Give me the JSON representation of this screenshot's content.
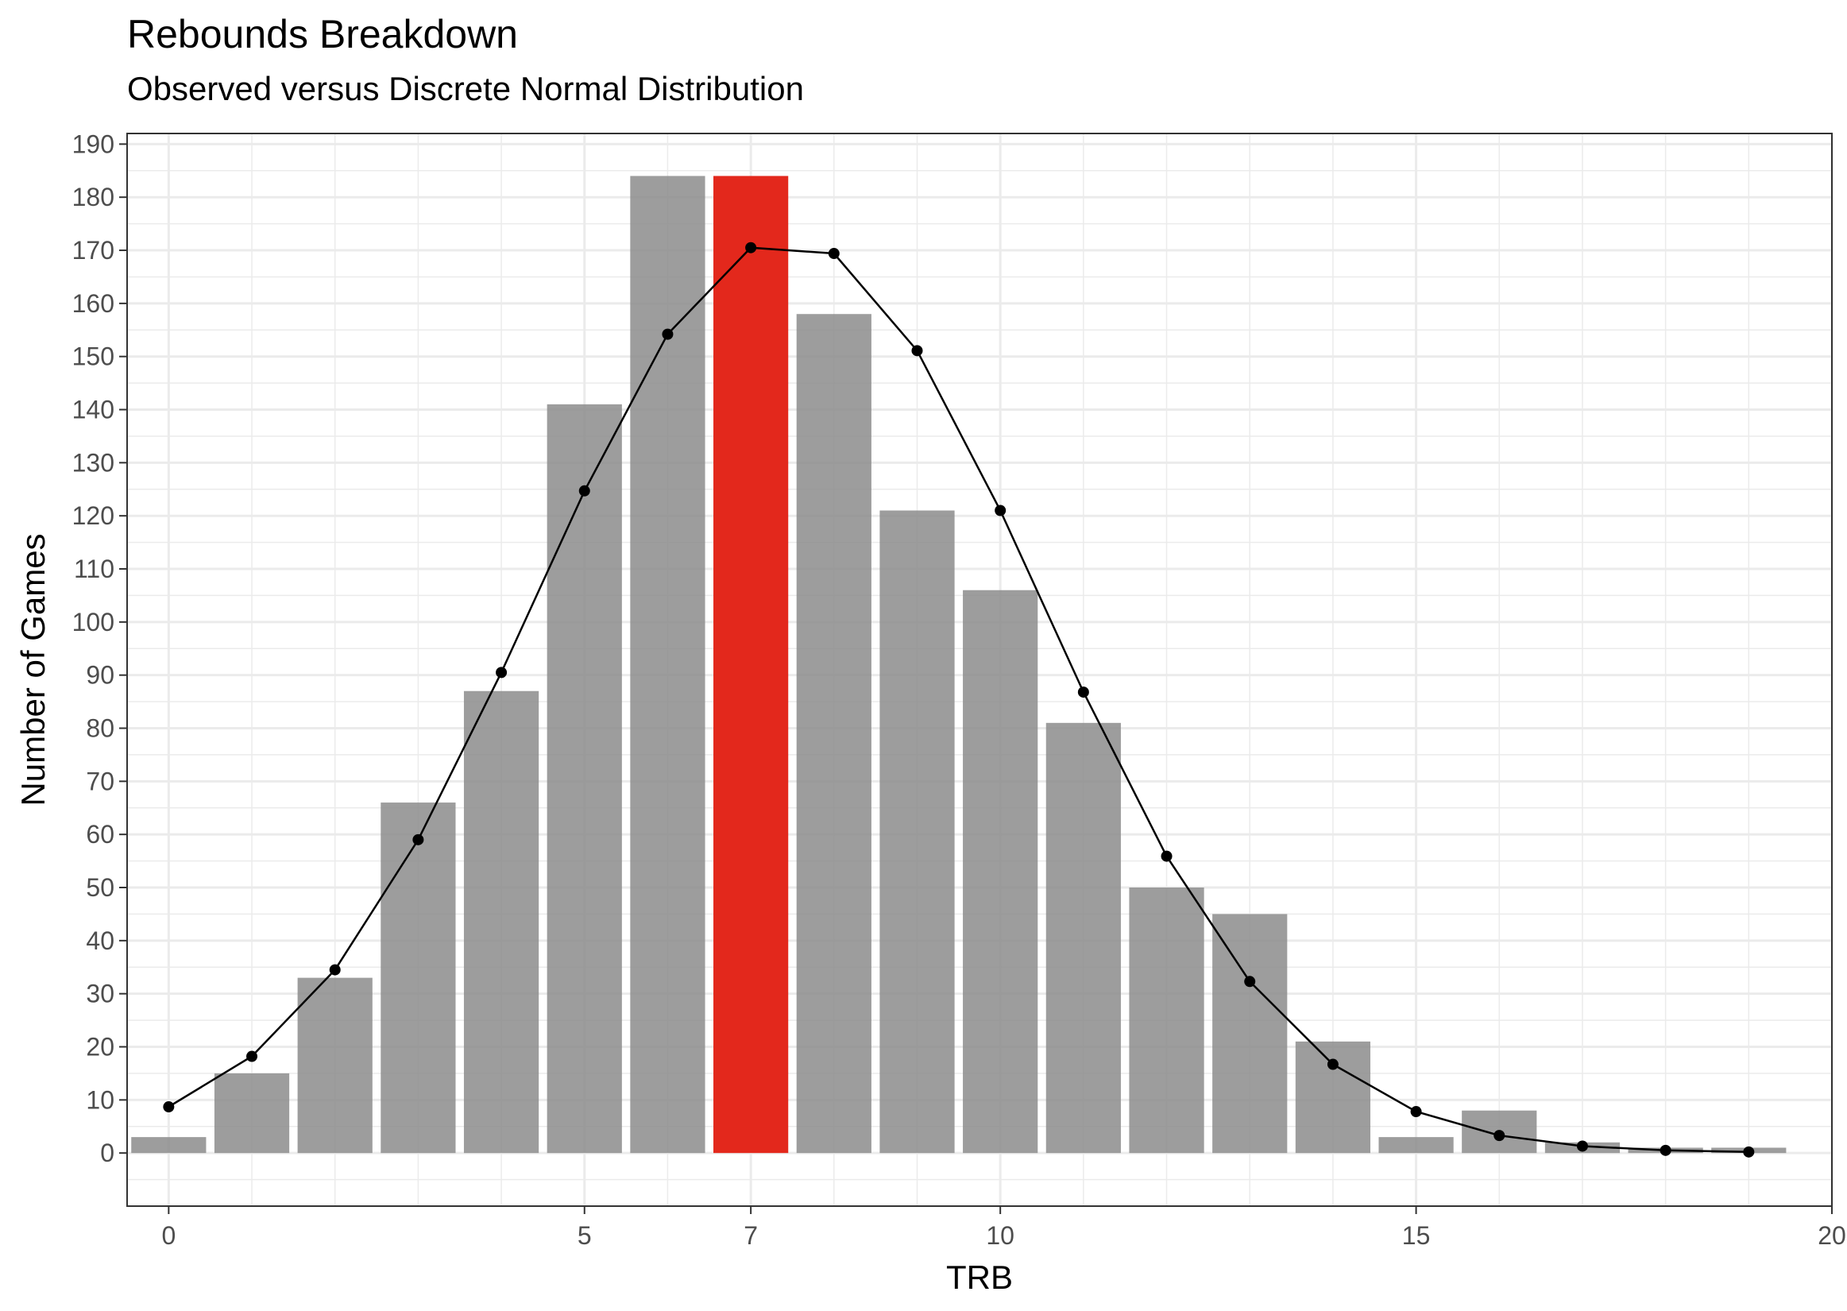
{
  "chart_data": {
    "type": "bar",
    "title": "Rebounds Breakdown",
    "subtitle": "Observed versus Discrete Normal Distribution",
    "xlabel": "TRB",
    "ylabel": "Number of Games",
    "xlim": [
      -0.5,
      20
    ],
    "ylim": [
      -10,
      192
    ],
    "x_ticks": [
      0,
      5,
      7,
      10,
      15,
      20
    ],
    "y_ticks": [
      0,
      10,
      20,
      30,
      40,
      50,
      60,
      70,
      80,
      90,
      100,
      110,
      120,
      130,
      140,
      150,
      160,
      170,
      180,
      190
    ],
    "grid": true,
    "highlight_x": 7,
    "colors": {
      "bar": "#8c8c8c",
      "highlight": "#e3281c",
      "line": "#000000"
    },
    "series": [
      {
        "type": "bar",
        "x": [
          0,
          1,
          2,
          3,
          4,
          5,
          6,
          7,
          8,
          9,
          10,
          11,
          12,
          13,
          14,
          15,
          16,
          17,
          18,
          19
        ],
        "values": [
          3,
          15,
          33,
          66,
          87,
          141,
          184,
          184,
          158,
          121,
          106,
          81,
          50,
          45,
          21,
          3,
          8,
          2,
          1,
          1
        ]
      },
      {
        "type": "line",
        "x": [
          0,
          1,
          2,
          3,
          4,
          5,
          6,
          7,
          8,
          9,
          10,
          11,
          12,
          13,
          14,
          15,
          16,
          17,
          18,
          19
        ],
        "values": [
          8.7,
          18.2,
          34.5,
          59,
          90.5,
          124.7,
          154.2,
          170.5,
          169.4,
          151.1,
          121,
          86.8,
          55.9,
          32.3,
          16.7,
          7.8,
          3.3,
          1.3,
          0.5,
          0.2
        ]
      }
    ]
  }
}
